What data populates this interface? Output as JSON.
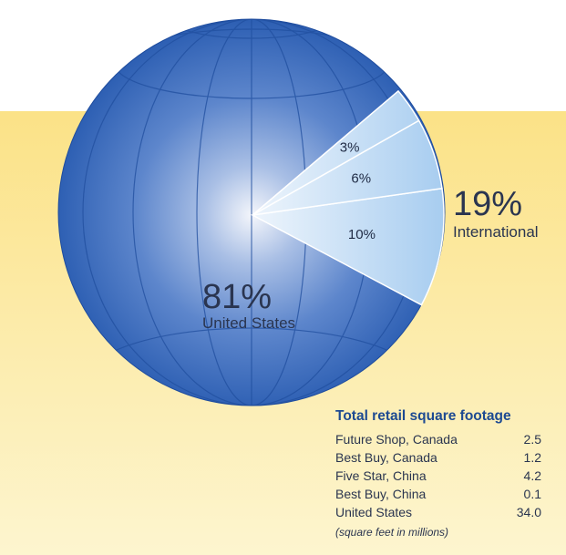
{
  "colors": {
    "background_band": "#fbe69a",
    "globe": "#2f63b6",
    "globe_dark": "#1e4c9e",
    "wedge": "#bdd9f3",
    "table_title": "#1d4a92"
  },
  "chart_data": {
    "type": "pie",
    "slices": [
      {
        "label": "United States",
        "value": 81
      },
      {
        "label": "International",
        "value": 19,
        "breakdown": [
          {
            "value": 10
          },
          {
            "value": 6
          },
          {
            "value": 3
          }
        ]
      }
    ],
    "labels": {
      "us_pct": "81%",
      "us_name": "United States",
      "intl_pct": "19%",
      "intl_name": "International",
      "sub": [
        "10%",
        "6%",
        "3%"
      ]
    }
  },
  "table": {
    "title": "Total retail square footage",
    "rows": [
      {
        "name": "Future Shop, Canada",
        "value": "2.5"
      },
      {
        "name": "Best Buy, Canada",
        "value": "1.2"
      },
      {
        "name": "Five Star, China",
        "value": "4.2"
      },
      {
        "name": "Best Buy, China",
        "value": "0.1"
      },
      {
        "name": "United States",
        "value": "34.0"
      }
    ],
    "note": "(square feet in millions)"
  }
}
